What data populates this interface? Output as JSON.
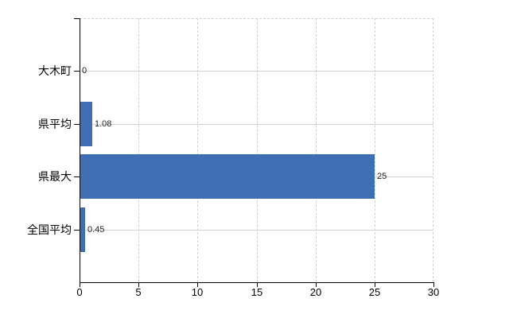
{
  "chart_data": {
    "type": "bar",
    "orientation": "horizontal",
    "categories": [
      "大木町",
      "県平均",
      "県最大",
      "全国平均"
    ],
    "values": [
      0,
      1.08,
      25,
      0.45
    ],
    "value_labels": [
      "0",
      "1.08",
      "25",
      "0.45"
    ],
    "xlim": [
      0,
      30
    ],
    "x_ticks": [
      0,
      5,
      10,
      15,
      20,
      25,
      30
    ],
    "x_tick_labels": [
      "0",
      "5",
      "10",
      "15",
      "20",
      "25",
      "30"
    ],
    "grid": {
      "vertical": "dashed",
      "horizontal": "solid",
      "frame_top_right": "dashed"
    },
    "legend_position": "none",
    "colors": {
      "bar": "#3e6fb2",
      "axis": "#000000",
      "grid_vertical": "#d3cdd3",
      "grid_horizontal": "#ccd5cc",
      "frame_dashed": "#d3cdd3",
      "category_text": "#000000",
      "tick_text": "#000000",
      "value_text": "#222222"
    }
  }
}
